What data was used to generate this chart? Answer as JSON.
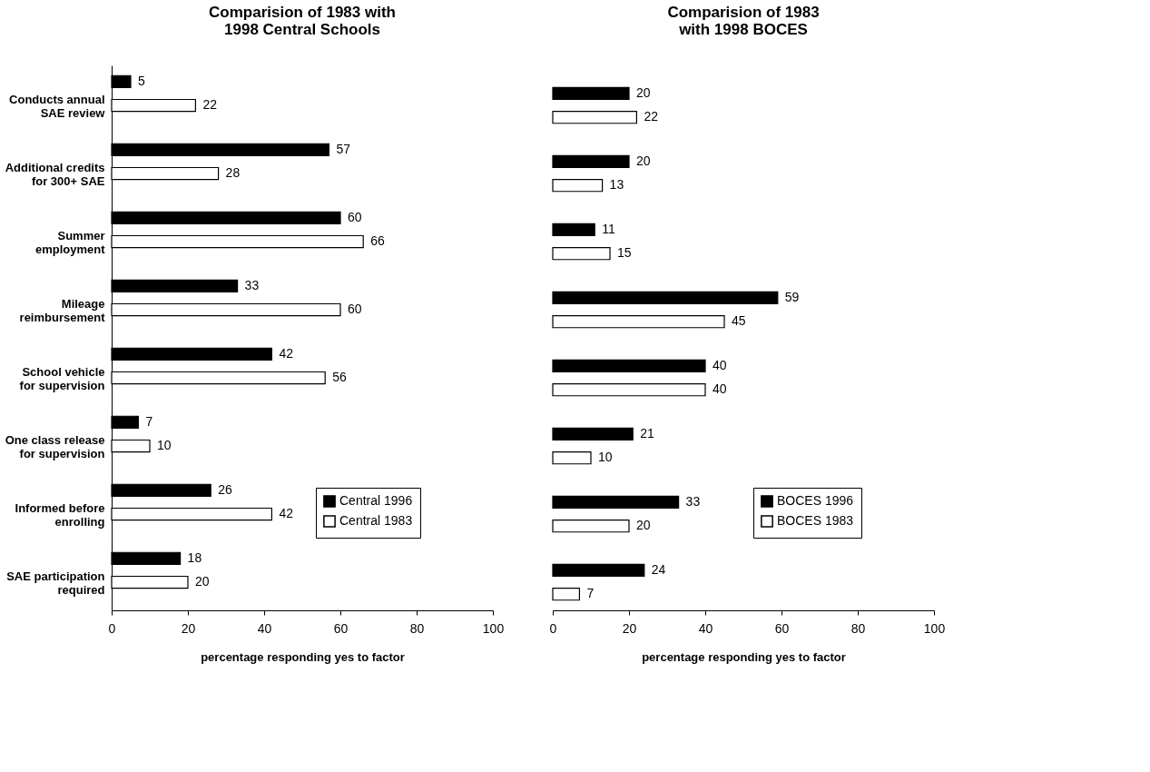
{
  "chart_data": [
    {
      "type": "bar",
      "orientation": "horizontal",
      "title": "Comparision of 1983 with 1998 Central Schools",
      "xlabel": "percentage responding yes to factor",
      "categories": [
        "Conducts annual SAE review",
        "Additional credits for 300+ SAE",
        "Summer employment",
        "Mileage reimbursement",
        "School vehicle for supervision",
        "One class release for supervision",
        "Informed before enrolling",
        "SAE participation required"
      ],
      "series": [
        {
          "name": "Central 1996",
          "color": "#000000",
          "values": [
            5,
            57,
            60,
            33,
            42,
            7,
            26,
            18
          ]
        },
        {
          "name": "Central 1983",
          "color": "#ffffff",
          "values": [
            22,
            28,
            66,
            60,
            56,
            10,
            42,
            20
          ]
        }
      ],
      "xlim": [
        0,
        100
      ],
      "xticks": [
        0,
        20,
        40,
        60,
        80,
        100
      ],
      "data_labels": true,
      "legend": "bottom right",
      "grid": false
    },
    {
      "type": "bar",
      "orientation": "horizontal",
      "title": "Comparision of 1983 with 1998 BOCES",
      "xlabel": "percentage responding yes to factor",
      "categories": [
        null,
        null,
        null,
        null,
        null,
        null,
        null,
        null
      ],
      "series": [
        {
          "name": "BOCES 1996",
          "color": "#000000",
          "values": [
            20,
            20,
            11,
            59,
            40,
            21,
            33,
            24
          ]
        },
        {
          "name": "BOCES 1983",
          "color": "#ffffff",
          "values": [
            22,
            13,
            15,
            45,
            40,
            10,
            20,
            7
          ]
        }
      ],
      "xlim": [
        0,
        100
      ],
      "xticks": [
        0,
        20,
        40,
        60,
        80,
        100
      ],
      "data_labels": true,
      "legend": "bottom right",
      "grid": false,
      "tick_labels": "x"
    }
  ]
}
